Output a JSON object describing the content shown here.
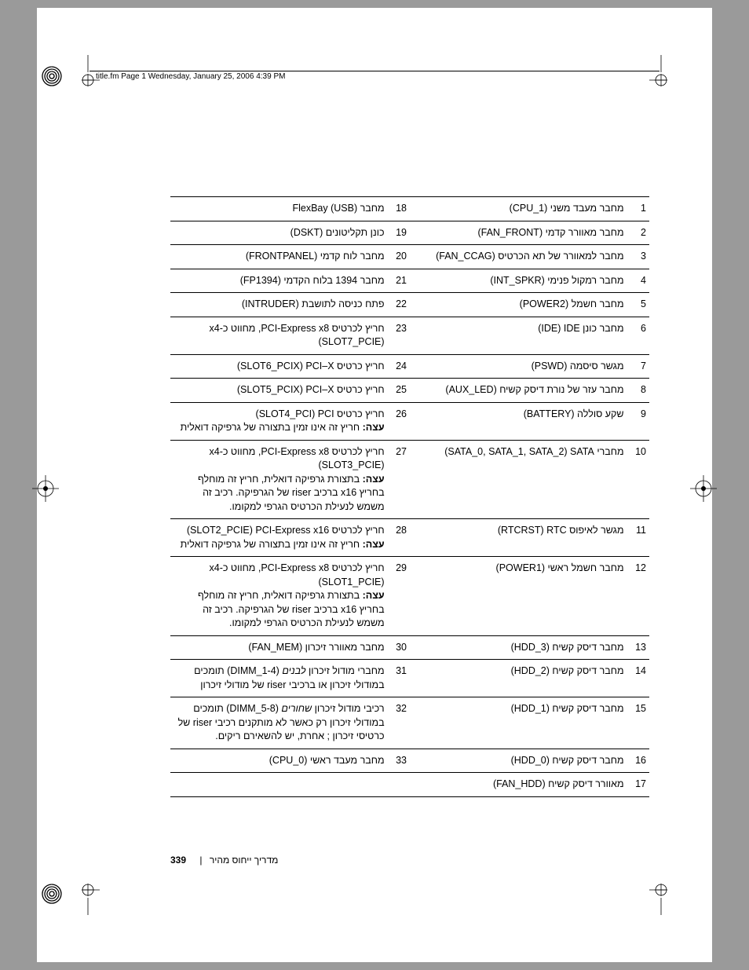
{
  "page": {
    "header_text": "title.fm  Page 1  Wednesday, January 25, 2006  4:39 PM",
    "footer_title": "מדריך ייחוס מהיר",
    "page_number": "339"
  },
  "rows": [
    {
      "n1": "1",
      "d1": "מחבר מעבד משני (CPU_1)",
      "n2": "18",
      "d2": "מחבר FlexBay (USB)"
    },
    {
      "n1": "2",
      "d1": "מחבר מאוורר קדמי (FAN_FRONT)",
      "n2": "19",
      "d2": "כונן תקליטונים (DSKT)"
    },
    {
      "n1": "3",
      "d1": "מחבר למאוורר של תא הכרטיס (FAN_CCAG)",
      "n2": "20",
      "d2": "מחבר לוח קדמי (FRONTPANEL)"
    },
    {
      "n1": "4",
      "d1": "מחבר רמקול פנימי (INT_SPKR)",
      "n2": "21",
      "d2": "מחבר 1394 בלוח הקדמי (FP1394)"
    },
    {
      "n1": "5",
      "d1": "מחבר חשמל (POWER2)",
      "n2": "22",
      "d2": "פתח כניסה לתושבת (INTRUDER)"
    },
    {
      "n1": "6",
      "d1": "מחבר כונן IDE ‏(IDE)",
      "n2": "23",
      "d2": "חריץ לכרטיס PCI-Express x8, מחווט כ-x4 ‏(SLOT7_PCIE)"
    },
    {
      "n1": "7",
      "d1": "מגשר סיסמה (PSWD)",
      "n2": "24",
      "d2": "חריץ כרטיס PCI–X ‏(SLOT6_PCIX)"
    },
    {
      "n1": "8",
      "d1": "מחבר עזר של נורת דיסק קשיח (AUX_LED)",
      "n2": "25",
      "d2": "חריץ כרטיס PCI–X ‏(SLOT5_PCIX)"
    },
    {
      "n1": "9",
      "d1": "שקע סוללה (BATTERY)",
      "n2": "26",
      "d2": "חריץ כרטיס PCI ‏(SLOT4_PCI)",
      "note2": "<b>עצה:</b> חריץ זה אינו זמין בתצורה של גרפיקה דואלית"
    },
    {
      "n1": "10",
      "d1": "מחברי SATA ‏(SATA_0, SATA_1, SATA_2)",
      "n2": "27",
      "d2": "חריץ לכרטיס PCI-Express x8,  מחווט כ-x4 ‏(SLOT3_PCIE)",
      "note2": "<b>עצה:</b> בתצורת גרפיקה דואלית, חריץ זה מוחלף בחריץ x16 ברכיב riser של הגרפיקה. רכיב זה משמש לנעילת הכרטיס הגרפי למקומו."
    },
    {
      "n1": "11",
      "d1": "מגשר לאיפוס RTC ‏(RTCRST)",
      "n2": "28",
      "d2": "חריץ לכרטיס PCI-Express x16 ‏(SLOT2_PCIE)",
      "note2": "<b>עצה:</b> חריץ זה אינו זמין בתצורה של גרפיקה דואלית"
    },
    {
      "n1": "12",
      "d1": "מחבר חשמל ראשי (POWER1)",
      "n2": "29",
      "d2": "חריץ לכרטיס PCI-Express x8, מחווט כ-x4 ‏(SLOT1_PCIE)",
      "note2": "<b>עצה:</b> בתצורת גרפיקה דואלית, חריץ זה מוחלף בחריץ x16 ברכיב riser של הגרפיקה. רכיב זה משמש לנעילת הכרטיס הגרפי למקומו."
    },
    {
      "n1": "13",
      "d1": "מחבר דיסק קשיח (HDD_3)",
      "n2": "30",
      "d2": "מחבר מאוורר זיכרון (FAN_MEM)"
    },
    {
      "n1": "14",
      "d1": "מחבר דיסק קשיח (HDD_2)",
      "n2": "31",
      "d2": "מחברי מודול זיכרון <i>לבנים</i> (DIMM_1-4) תומכים במודולי זיכרון או ברכיבי riser של מודולי זיכרון"
    },
    {
      "n1": "15",
      "d1": "מחבר דיסק קשיח (HDD_1)",
      "n2": "32",
      "d2": "רכיבי מודול זיכרון <i>שחורים</i> (DIMM_5-8) תומכים במודולי זיכרון רק כאשר לא מותקנים רכיבי riser של כרטיסי זיכרון ; אחרת, יש להשאירם ריקים."
    },
    {
      "n1": "16",
      "d1": "מחבר דיסק קשיח (HDD_0)",
      "n2": "33",
      "d2": "מחבר מעבד ראשי (CPU_0)"
    },
    {
      "n1": "17",
      "d1": "מאוורר דיסק קשיח (FAN_HDD)",
      "n2": "",
      "d2": ""
    }
  ]
}
